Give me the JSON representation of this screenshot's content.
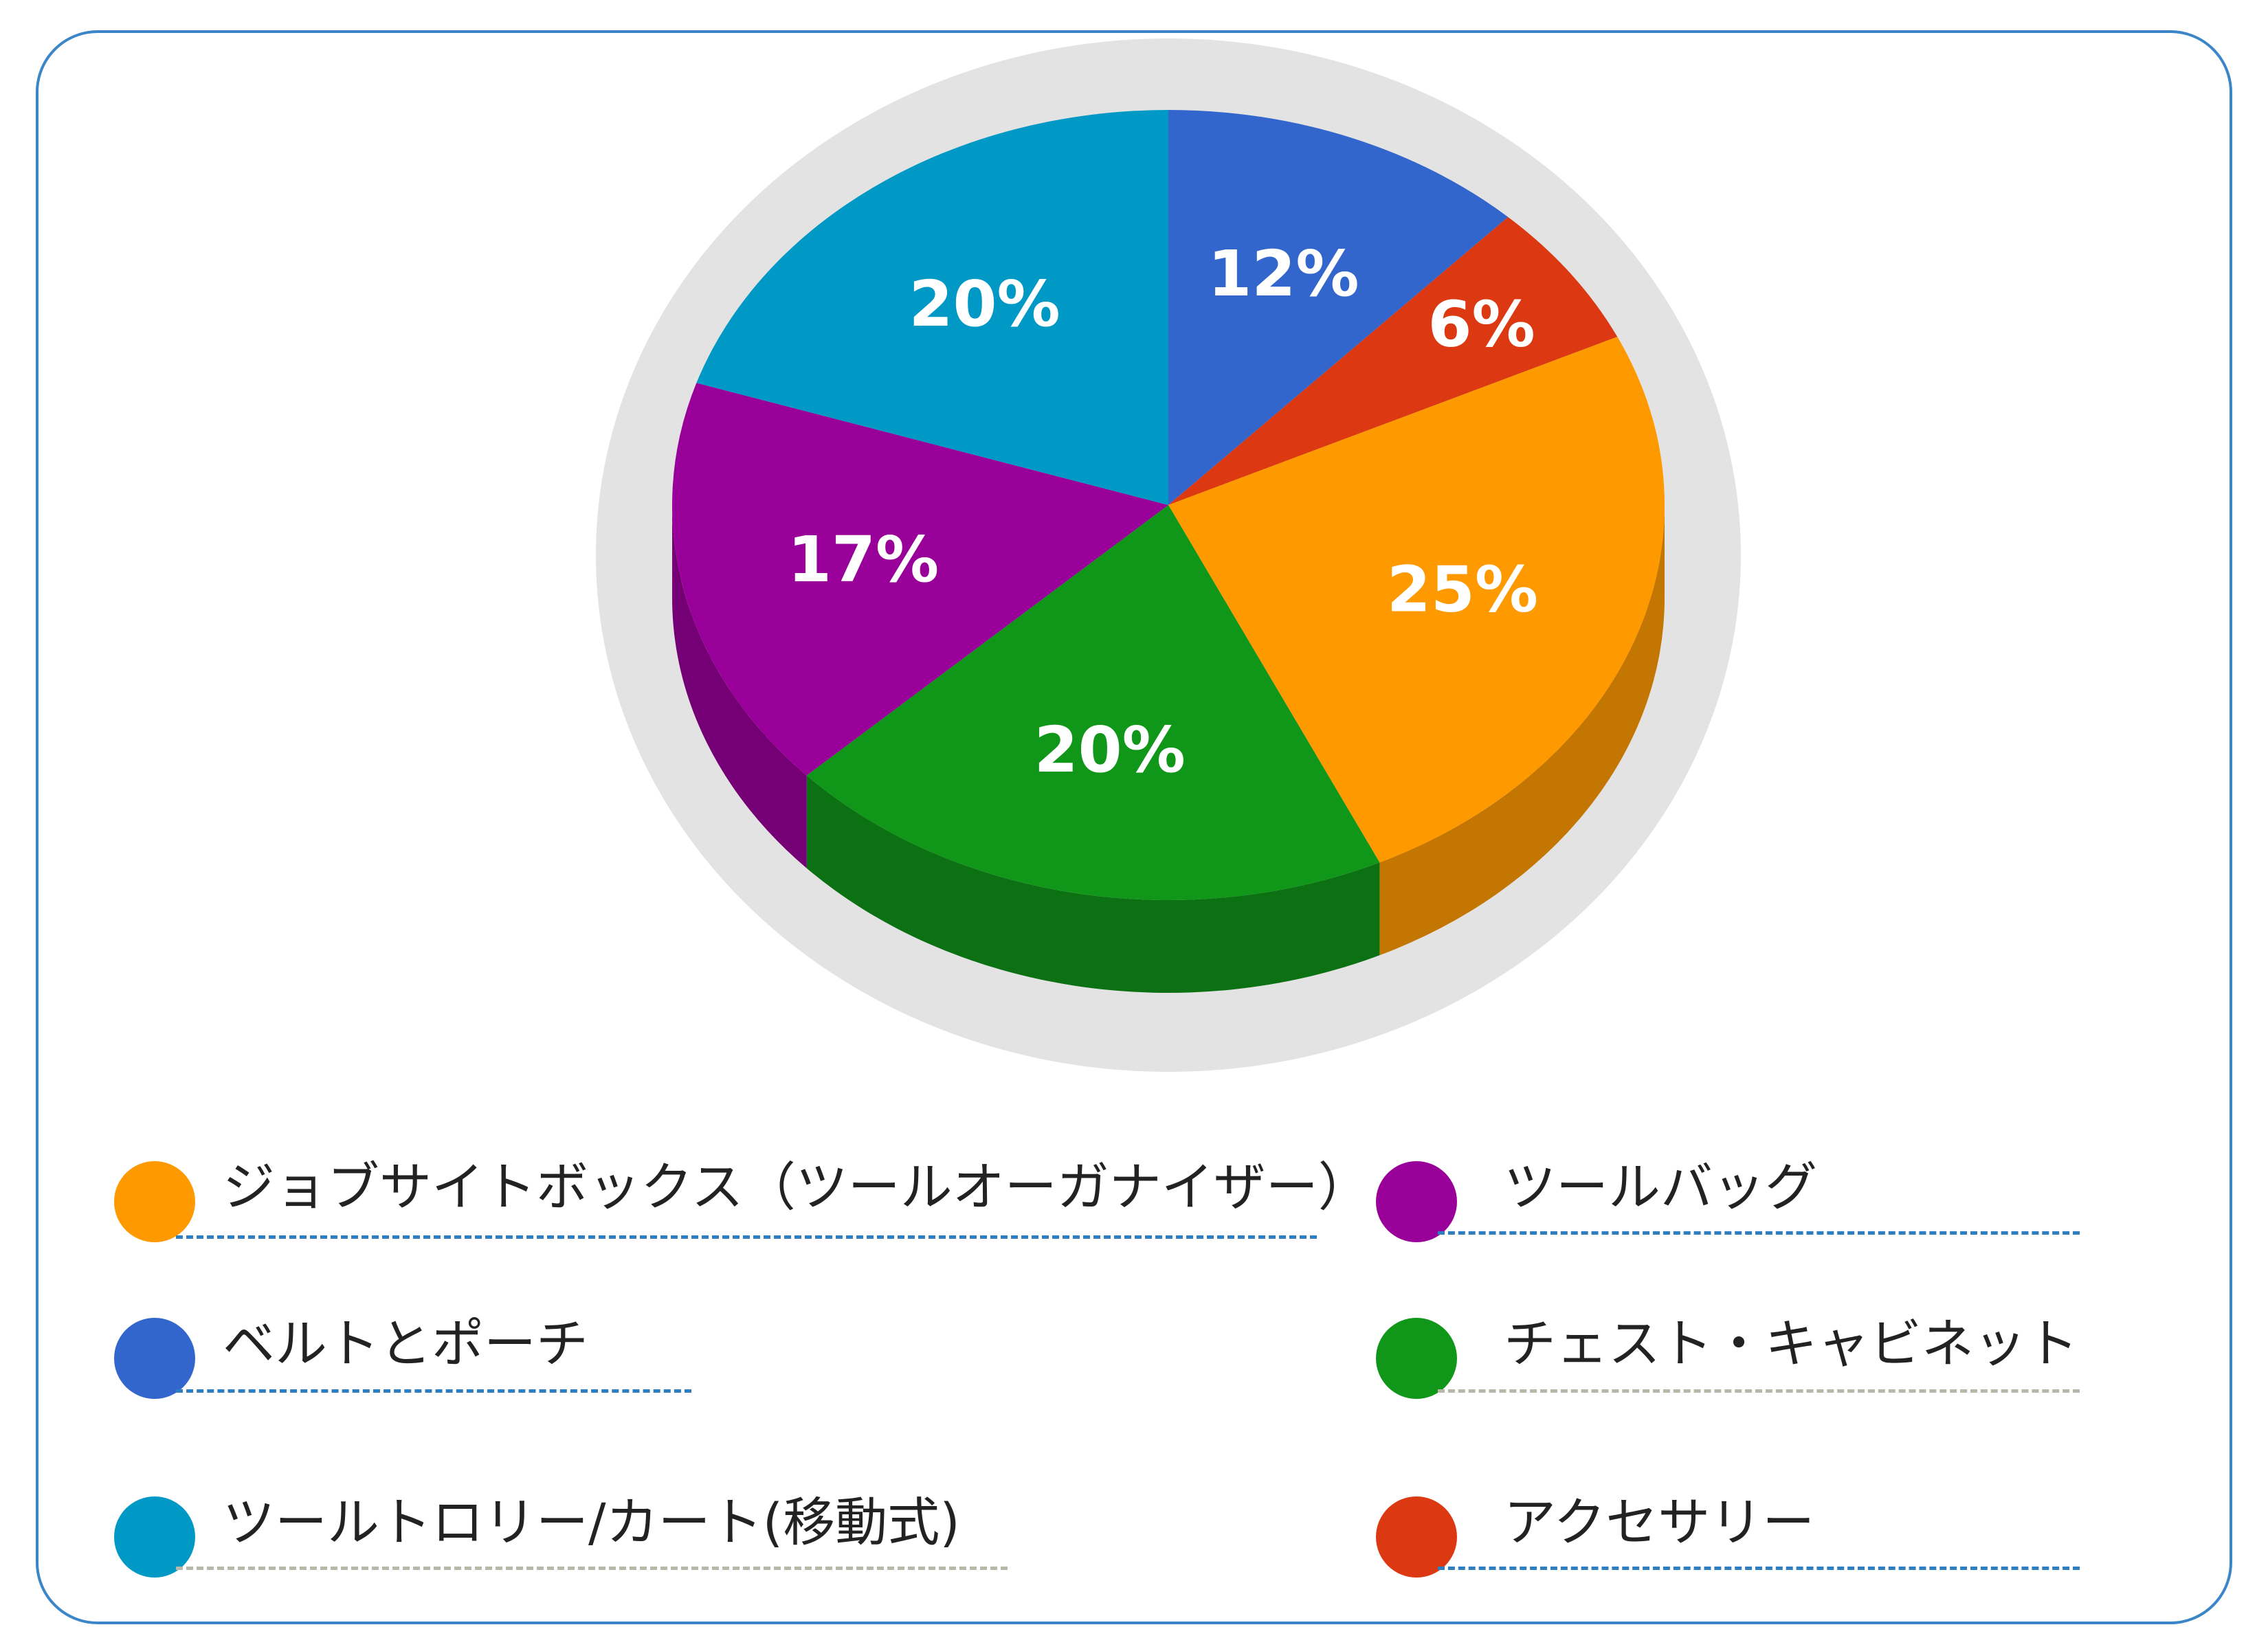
{
  "chart_data": {
    "type": "pie",
    "style": "3d",
    "slices": [
      {
        "label": "ベルトとポーチ",
        "value": 12,
        "display": "12%",
        "color": "#3366cc",
        "side_color": "#2a52a3"
      },
      {
        "label": "アクセサリー",
        "value": 6,
        "display": "6%",
        "color": "#dc3912",
        "side_color": "#b02d0e"
      },
      {
        "label": "ジョブサイトボックス（ツールオーガナイザー）",
        "value": 25,
        "display": "25%",
        "color": "#ff9900",
        "side_color": "#c47603"
      },
      {
        "label": "チェスト・キャビネット",
        "value": 20,
        "display": "20%",
        "color": "#109618",
        "side_color": "#0c7113"
      },
      {
        "label": "ツールバッグ",
        "value": 17,
        "display": "17%",
        "color": "#990099",
        "side_color": "#750075"
      },
      {
        "label": "ツールトロリー/カート(移動式)",
        "value": 20,
        "display": "20%",
        "color": "#0099c6",
        "side_color": "#0077a0"
      }
    ],
    "legend_position": "bottom",
    "background_ring_color": "#e3e3e3"
  },
  "legend": [
    {
      "label": "ジョブサイトボックス（ツールオーガナイザー）",
      "color": "#ff9900",
      "line": "blue"
    },
    {
      "label": "ツールバッグ",
      "color": "#990099",
      "line": "blue"
    },
    {
      "label": "ベルトとポーチ",
      "color": "#3366cc",
      "line": "blue"
    },
    {
      "label": "チェスト・キャビネット",
      "color": "#109618",
      "line": "gray"
    },
    {
      "label": "ツールトロリー/カート(移動式)",
      "color": "#0099c6",
      "line": "gray"
    },
    {
      "label": "アクセサリー",
      "color": "#dc3912",
      "line": "blue"
    }
  ]
}
